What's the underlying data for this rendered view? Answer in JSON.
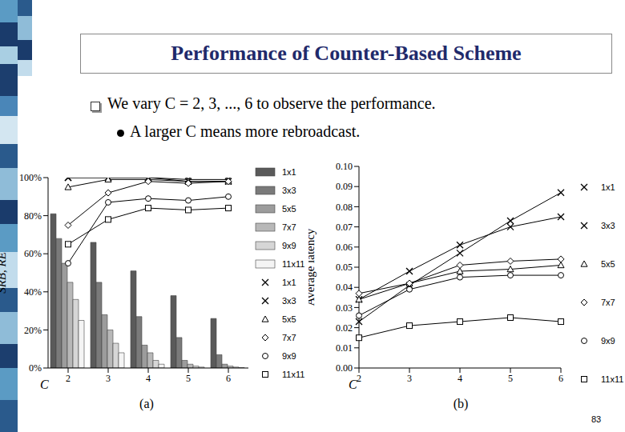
{
  "title": "Performance of Counter-Based Scheme",
  "bullets": [
    {
      "text": "We vary C = 2, 3, ..., 6 to observe the performance.",
      "sub": [
        "A larger C means more rebroadcast."
      ]
    }
  ],
  "page_number": "83",
  "chart_data": [
    {
      "type": "bar",
      "caption": "(a)",
      "x_label": "C",
      "y_label": "SRB, RE",
      "categories": [
        2,
        3,
        4,
        5,
        6
      ],
      "ylim": [
        0,
        100
      ],
      "yticks": [
        {
          "value": 0,
          "label": "0%"
        },
        {
          "value": 20,
          "label": "20%"
        },
        {
          "value": 40,
          "label": "40%"
        },
        {
          "value": 60,
          "label": "60%"
        },
        {
          "value": 80,
          "label": "80%"
        },
        {
          "value": 100,
          "label": "100%"
        }
      ],
      "grid": false,
      "legend": "right",
      "series": [
        {
          "name": "1x1",
          "type": "bar",
          "color": "#5a5a5a",
          "values": [
            81,
            66,
            51,
            38,
            26
          ]
        },
        {
          "name": "3x3",
          "type": "bar",
          "color": "#7a7a7a",
          "values": [
            68,
            45,
            27,
            16,
            7
          ]
        },
        {
          "name": "5x5",
          "type": "bar",
          "color": "#9c9c9c",
          "values": [
            55,
            28,
            12,
            4,
            2
          ]
        },
        {
          "name": "7x7",
          "type": "bar",
          "color": "#b8b8b8",
          "values": [
            45,
            20,
            8,
            2,
            1
          ]
        },
        {
          "name": "9x9",
          "type": "bar",
          "color": "#d6d6d6",
          "values": [
            36,
            13,
            4,
            1,
            0.5
          ]
        },
        {
          "name": "11x11",
          "type": "bar",
          "color": "#f4f4f4",
          "values": [
            25,
            8,
            2,
            0.5,
            0.2
          ]
        },
        {
          "name": "1x1",
          "type": "line",
          "marker": "x",
          "color": "#000000",
          "values": [
            100,
            100,
            100,
            99,
            99
          ]
        },
        {
          "name": "3x3",
          "type": "line",
          "marker": "x",
          "color": "#000000",
          "values": [
            100,
            100,
            100,
            98,
            98
          ]
        },
        {
          "name": "5x5",
          "type": "line",
          "marker": "triangle",
          "color": "#000000",
          "values": [
            95,
            99,
            99,
            98,
            98
          ]
        },
        {
          "name": "7x7",
          "type": "line",
          "marker": "diamond",
          "color": "#000000",
          "values": [
            75,
            92,
            98,
            97,
            98
          ]
        },
        {
          "name": "9x9",
          "type": "line",
          "marker": "circle",
          "color": "#000000",
          "values": [
            55,
            87,
            89,
            88,
            90
          ]
        },
        {
          "name": "11x11",
          "type": "line",
          "marker": "square",
          "color": "#000000",
          "values": [
            65,
            78,
            84,
            83,
            84
          ]
        }
      ]
    },
    {
      "type": "line",
      "caption": "(b)",
      "x_label": "C",
      "y_label": "Average latency",
      "categories": [
        2,
        3,
        4,
        5,
        6
      ],
      "ylim": [
        0,
        0.1
      ],
      "yticks": [
        {
          "value": 0,
          "label": "0.00"
        },
        0.01,
        0.02,
        0.03,
        0.04,
        0.05,
        0.06,
        0.07,
        0.08,
        0.09,
        {
          "value": 0.1,
          "label": "0.10"
        }
      ],
      "grid": false,
      "legend": "right",
      "series": [
        {
          "name": "1x1",
          "type": "line",
          "marker": "x",
          "color": "#000000",
          "values": [
            0.023,
            0.041,
            0.057,
            0.073,
            0.087
          ]
        },
        {
          "name": "3x3",
          "type": "line",
          "marker": "x",
          "color": "#000000",
          "values": [
            0.034,
            0.048,
            0.061,
            0.07,
            0.075
          ]
        },
        {
          "name": "5x5",
          "type": "line",
          "marker": "triangle",
          "color": "#000000",
          "values": [
            0.034,
            0.042,
            0.048,
            0.049,
            0.051
          ]
        },
        {
          "name": "7x7",
          "type": "line",
          "marker": "diamond",
          "color": "#000000",
          "values": [
            0.037,
            0.042,
            0.051,
            0.053,
            0.054
          ]
        },
        {
          "name": "9x9",
          "type": "line",
          "marker": "circle",
          "color": "#000000",
          "values": [
            0.026,
            0.039,
            0.045,
            0.046,
            0.046
          ]
        },
        {
          "name": "11x11",
          "type": "line",
          "marker": "square",
          "color": "#000000",
          "values": [
            0.015,
            0.021,
            0.023,
            0.025,
            0.023
          ]
        }
      ]
    }
  ]
}
